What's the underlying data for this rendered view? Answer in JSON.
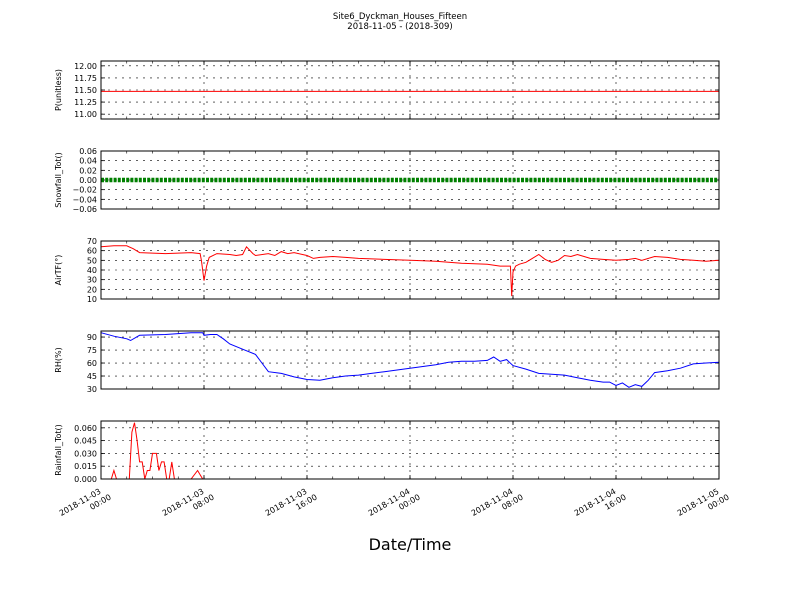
{
  "figure": {
    "title_line1": "Site6_Dyckman_Houses_Fifteen",
    "title_line2": "2018-11-05 - (2018-309)",
    "xlabel": "Date/Time"
  },
  "chart_data": [
    {
      "type": "line",
      "ylabel": "P(unitless)",
      "ylim": [
        10.9,
        12.1
      ],
      "yticks": [
        11.0,
        11.25,
        11.5,
        11.75,
        12.0
      ],
      "yticklabels": [
        "11.00",
        "11.25",
        "11.50",
        "11.75",
        "12.00"
      ],
      "grid": true,
      "color": "#ff0000",
      "x": [
        0,
        48
      ],
      "y": [
        11.47,
        11.47
      ]
    },
    {
      "type": "line",
      "ylabel": "Snowfall_Tot()",
      "ylim": [
        -0.06,
        0.06
      ],
      "yticks": [
        -0.06,
        -0.04,
        -0.02,
        0.0,
        0.02,
        0.04,
        0.06
      ],
      "yticklabels": [
        "−0.06",
        "−0.04",
        "−0.02",
        "0.00",
        "0.02",
        "0.04",
        "0.06"
      ],
      "grid": true,
      "color": "#008000",
      "style": "dense-markers",
      "x": [
        0,
        48
      ],
      "y": [
        0.0,
        0.0
      ]
    },
    {
      "type": "line",
      "ylabel": "AirTF(°)",
      "ylim": [
        10,
        70
      ],
      "yticks": [
        10,
        20,
        30,
        40,
        50,
        60,
        70
      ],
      "yticklabels": [
        "10",
        "20",
        "30",
        "40",
        "50",
        "60",
        "70"
      ],
      "grid": true,
      "color": "#ff0000",
      "x": [
        0,
        1,
        2,
        2.5,
        3,
        5,
        7,
        7.7,
        7.8,
        8.0,
        8.2,
        8.4,
        9,
        10,
        10.5,
        11,
        11.3,
        11.8,
        12,
        13,
        13.5,
        14,
        14.5,
        15,
        16,
        16.5,
        17,
        18,
        19,
        20,
        22,
        24,
        26,
        28,
        30,
        31,
        31.5,
        31.8,
        31.9,
        32.0,
        32.2,
        32.5,
        33,
        33.5,
        34,
        34.5,
        35,
        35.5,
        36,
        36.5,
        37,
        38,
        39,
        40,
        41,
        41.5,
        42,
        43,
        44,
        45,
        46,
        47,
        48
      ],
      "y": [
        64,
        65,
        65,
        62,
        58,
        57,
        58,
        57,
        50,
        29,
        44,
        53,
        57,
        56,
        55,
        56,
        64,
        57,
        55,
        57,
        55,
        59,
        57,
        58,
        55,
        52,
        53,
        54,
        53,
        52,
        51,
        50,
        49,
        47,
        46,
        44,
        44,
        44,
        13,
        38,
        44,
        46,
        48,
        52,
        56,
        51,
        48,
        50,
        55,
        54,
        56,
        52,
        51,
        50,
        51,
        52,
        50,
        54,
        53,
        51,
        50,
        49,
        50
      ]
    },
    {
      "type": "line",
      "ylabel": "RH(%)",
      "ylim": [
        30,
        97
      ],
      "yticks": [
        30,
        45,
        60,
        75,
        90
      ],
      "yticklabels": [
        "30",
        "45",
        "60",
        "75",
        "90"
      ],
      "grid": true,
      "color": "#0000ff",
      "x": [
        0,
        1,
        2,
        2.3,
        3,
        5,
        7,
        7.9,
        8,
        8.5,
        9,
        9.5,
        10,
        11,
        12,
        12.5,
        13,
        14,
        15,
        16,
        17,
        18,
        19,
        20,
        21,
        22,
        23,
        24,
        25,
        26,
        27,
        28,
        29,
        30,
        30.5,
        31,
        31.5,
        32,
        33,
        34,
        35,
        36,
        37,
        38,
        39,
        39.5,
        40,
        40.5,
        41,
        41.5,
        42,
        42.5,
        43,
        44,
        45,
        46,
        47,
        48
      ],
      "y": [
        95,
        91,
        88,
        86,
        92,
        93,
        95,
        95,
        92,
        93,
        93,
        88,
        82,
        76,
        70,
        60,
        50,
        48,
        44,
        41,
        40,
        43,
        45,
        46,
        48,
        50,
        52,
        54,
        56,
        58,
        61,
        62,
        62,
        63,
        67,
        62,
        64,
        57,
        53,
        48,
        47,
        46,
        43,
        40,
        38,
        38,
        34,
        37,
        32,
        35,
        33,
        40,
        49,
        51,
        54,
        59,
        60,
        61
      ]
    },
    {
      "type": "line",
      "ylabel": "Rainfall_Tot()",
      "ylim": [
        0,
        0.068
      ],
      "yticks": [
        0.0,
        0.015,
        0.03,
        0.045,
        0.06
      ],
      "yticklabels": [
        "0.000",
        "0.015",
        "0.030",
        "0.045",
        "0.060"
      ],
      "grid": true,
      "color": "#ff0000",
      "x": [
        0,
        0.8,
        1.0,
        1.2,
        1.6,
        2.2,
        2.4,
        2.6,
        2.8,
        3.0,
        3.2,
        3.4,
        3.6,
        3.8,
        4.0,
        4.3,
        4.5,
        4.7,
        4.9,
        5.1,
        5.3,
        5.5,
        5.7,
        5.9,
        6.1,
        6.3,
        6.5,
        6.7,
        7.0,
        7.5,
        7.7,
        7.9,
        8.1,
        9,
        48
      ],
      "y": [
        0,
        0,
        0.01,
        0,
        0,
        0,
        0.055,
        0.066,
        0.045,
        0.02,
        0.02,
        0,
        0.01,
        0.01,
        0.03,
        0.03,
        0.01,
        0.02,
        0.02,
        0,
        0,
        0.02,
        0,
        0,
        0,
        0,
        0,
        0,
        0,
        0.01,
        0.005,
        0,
        0,
        0,
        0
      ]
    }
  ],
  "x_axis": {
    "range": [
      "2018-11-03 00:00",
      "2018-11-05 00:00"
    ],
    "ticks": [
      {
        "line1": "2018-11-03",
        "line2": "00:00"
      },
      {
        "line1": "2018-11-03",
        "line2": "08:00"
      },
      {
        "line1": "2018-11-03",
        "line2": "16:00"
      },
      {
        "line1": "2018-11-04",
        "line2": "00:00"
      },
      {
        "line1": "2018-11-04",
        "line2": "08:00"
      },
      {
        "line1": "2018-11-04",
        "line2": "16:00"
      },
      {
        "line1": "2018-11-05",
        "line2": "00:00"
      }
    ],
    "tick_hours": [
      0,
      8,
      16,
      24,
      32,
      40,
      48
    ]
  }
}
